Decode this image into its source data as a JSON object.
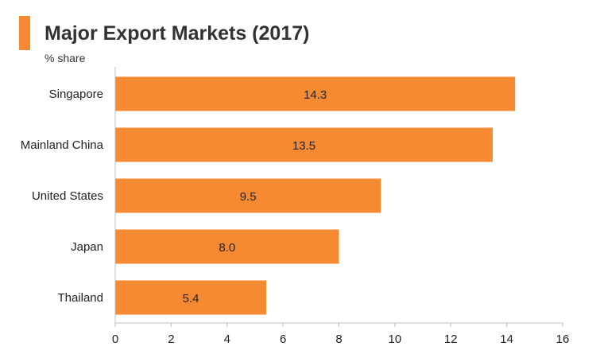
{
  "header": {
    "title": "Major Export Markets (2017)",
    "subtitle": "% share"
  },
  "colors": {
    "accent": "#F58A32",
    "bar": "#F58A32",
    "axis": "#BFBFBF",
    "text": "#222222"
  },
  "chart_data": {
    "type": "bar",
    "orientation": "horizontal",
    "title": "Major Export Markets (2017)",
    "subtitle": "% share",
    "categories": [
      "Singapore",
      "Mainland China",
      "United States",
      "Japan",
      "Thailand"
    ],
    "values": [
      14.3,
      13.5,
      9.5,
      8.0,
      5.4
    ],
    "data_labels": [
      "14.3",
      "13.5",
      "9.5",
      "8.0",
      "5.4"
    ],
    "xlim": [
      0,
      16
    ],
    "xticks": [
      0,
      2,
      4,
      6,
      8,
      10,
      12,
      14,
      16
    ],
    "grid": false,
    "legend": "none"
  }
}
